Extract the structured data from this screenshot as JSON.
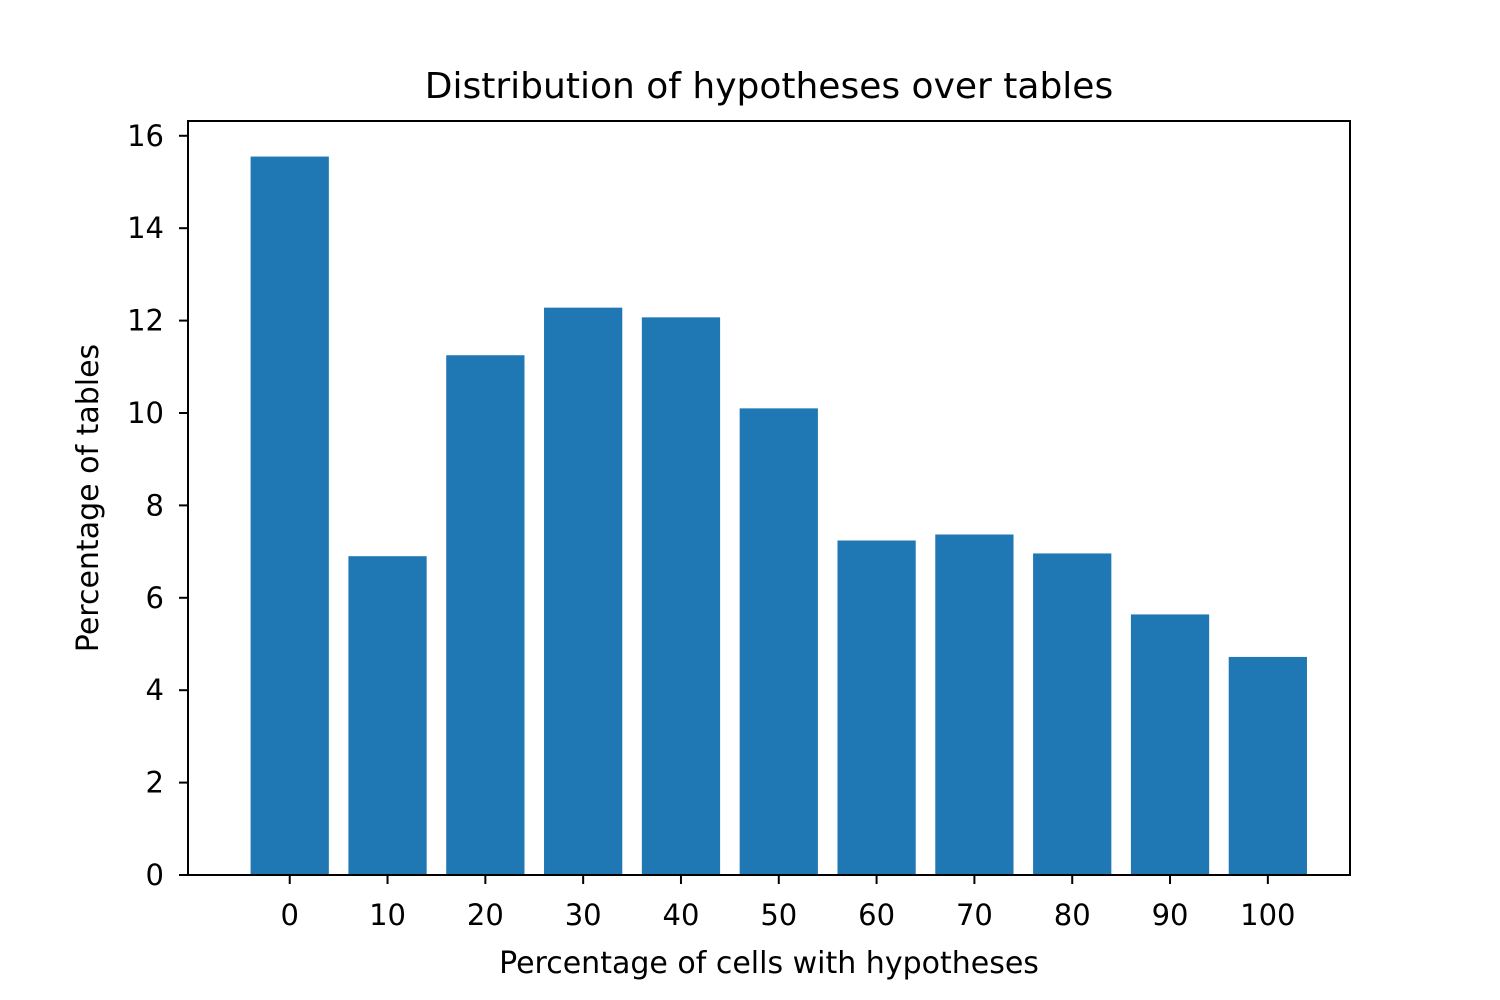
{
  "chart_data": {
    "type": "bar",
    "title": "Distribution of hypotheses over tables",
    "xlabel": "Percentage of cells with hypotheses",
    "ylabel": "Percentage of tables",
    "categories": [
      "0",
      "10",
      "20",
      "30",
      "40",
      "50",
      "60",
      "70",
      "80",
      "90",
      "100"
    ],
    "x": [
      0,
      10,
      20,
      30,
      40,
      50,
      60,
      70,
      80,
      90,
      100
    ],
    "values": [
      15.55,
      6.9,
      11.25,
      12.28,
      12.07,
      10.1,
      7.24,
      7.37,
      6.96,
      5.64,
      4.72
    ],
    "bar_width": 8,
    "xlim": [
      -10.4,
      108.4
    ],
    "ylim": [
      0,
      16.32
    ],
    "yticks": [
      0,
      2,
      4,
      6,
      8,
      10,
      12,
      14,
      16
    ],
    "ytick_labels": [
      "0",
      "2",
      "4",
      "6",
      "8",
      "10",
      "12",
      "14",
      "16"
    ],
    "grid": false,
    "colors": {
      "bar": "#1f77b4",
      "axes": "#000000",
      "background": "#ffffff"
    }
  }
}
